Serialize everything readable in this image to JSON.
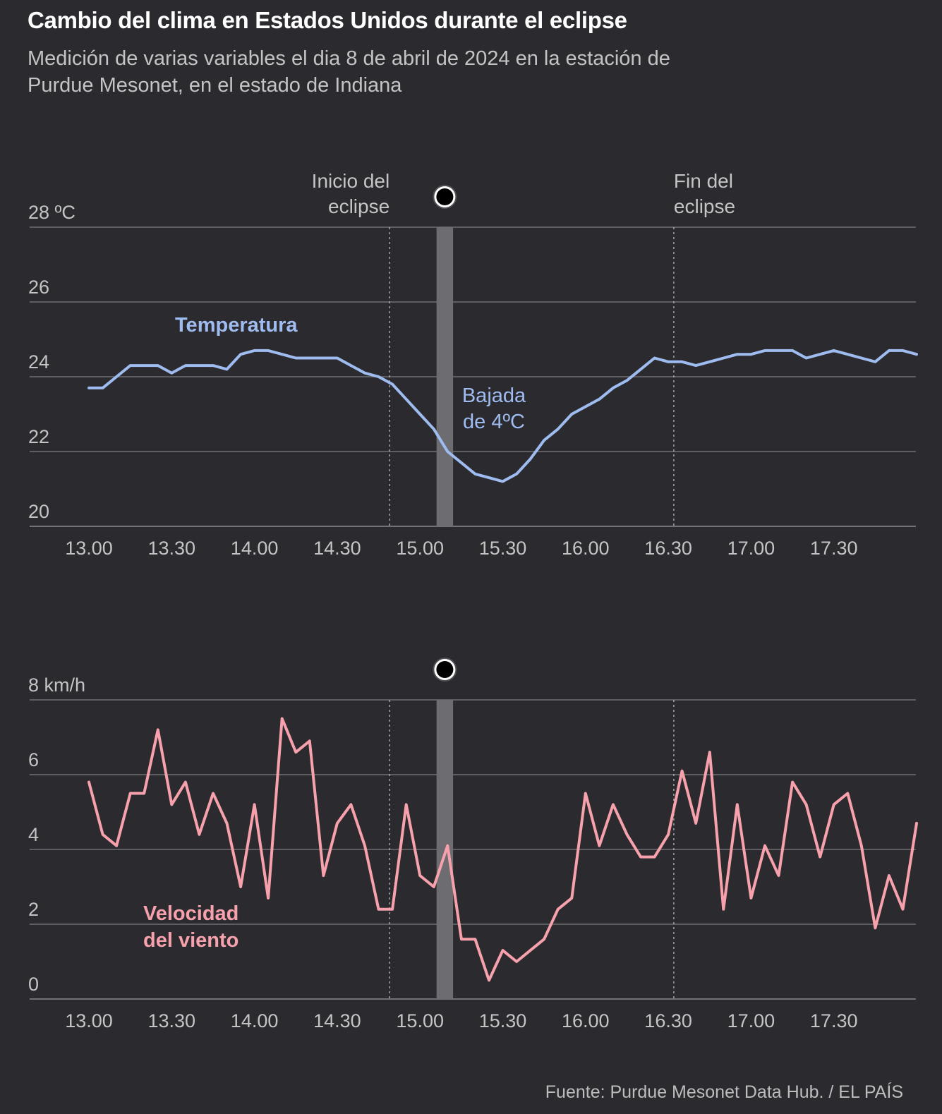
{
  "header": {
    "title": "Cambio del clima en Estados Unidos durante el eclipse",
    "subtitle": "Medición de varias variables el dia 8 de abril de 2024 en la estación de Purdue Mesonet, en el estado de Indiana"
  },
  "footer": {
    "source": "Fuente: Purdue Mesonet Data Hub. / EL PAÍS"
  },
  "colors": {
    "background": "#2b2a2f",
    "temperature": "#9fbcf0",
    "wind": "#f7a1ad",
    "grid": "#6f6e73",
    "totality_band": "#6d6c70",
    "axis_text": "#c4c4c4"
  },
  "chart_data": [
    {
      "type": "line",
      "x_tick_labels": [
        "13.00",
        "13.30",
        "14.00",
        "14.30",
        "15.00",
        "15.30",
        "16.00",
        "16.30",
        "17.00",
        "17.30"
      ],
      "y_tick_labels": [
        "28 ºC",
        "26",
        "24",
        "22",
        "20"
      ],
      "y_ticks": [
        28,
        26,
        24,
        22,
        20
      ],
      "ylim": [
        20,
        28
      ],
      "xlim_minutes_after_13h": [
        0,
        301
      ],
      "grid": true,
      "eclipse_start_label": "Inicio del eclipse",
      "eclipse_start_label_lines": [
        "Inicio del",
        "eclipse"
      ],
      "eclipse_start_minutes_after_13h": 109,
      "eclipse_end_label": "Fin del eclipse",
      "eclipse_end_label_lines": [
        "Fin del",
        "eclipse"
      ],
      "eclipse_end_minutes_after_13h": 212,
      "totality_minutes_after_13h": [
        126,
        132
      ],
      "annotation": "Bajada de 4ºC",
      "annotation_lines": [
        "Bajada",
        "de 4ºC"
      ],
      "series": [
        {
          "name": "Temperatura",
          "x_minutes_after_13h": [
            0,
            5,
            10,
            15,
            20,
            25,
            30,
            35,
            40,
            45,
            50,
            55,
            60,
            65,
            70,
            75,
            80,
            85,
            90,
            95,
            100,
            105,
            110,
            115,
            120,
            125,
            130,
            135,
            140,
            145,
            150,
            155,
            160,
            165,
            170,
            175,
            180,
            185,
            190,
            195,
            200,
            205,
            210,
            215,
            220,
            225,
            230,
            235,
            240,
            245,
            250,
            255,
            260,
            265,
            270,
            275,
            280,
            285,
            290,
            295,
            300
          ],
          "values": [
            23.7,
            23.7,
            24.0,
            24.3,
            24.3,
            24.3,
            24.1,
            24.3,
            24.3,
            24.3,
            24.2,
            24.6,
            24.7,
            24.7,
            24.6,
            24.5,
            24.5,
            24.5,
            24.5,
            24.3,
            24.1,
            24.0,
            23.8,
            23.4,
            23.0,
            22.6,
            22.0,
            21.7,
            21.4,
            21.3,
            21.2,
            21.4,
            21.8,
            22.3,
            22.6,
            23.0,
            23.2,
            23.4,
            23.7,
            23.9,
            24.2,
            24.5,
            24.4,
            24.4,
            24.3,
            24.4,
            24.5,
            24.6,
            24.6,
            24.7,
            24.7,
            24.7,
            24.5,
            24.6,
            24.7,
            24.6,
            24.5,
            24.4,
            24.7,
            24.7,
            24.6
          ]
        }
      ]
    },
    {
      "type": "line",
      "x_tick_labels": [
        "13.00",
        "13.30",
        "14.00",
        "14.30",
        "15.00",
        "15.30",
        "16.00",
        "16.30",
        "17.00",
        "17.30"
      ],
      "y_tick_labels": [
        "8 km/h",
        "6",
        "4",
        "2",
        "0"
      ],
      "y_ticks": [
        8,
        6,
        4,
        2,
        0
      ],
      "ylim": [
        0,
        8
      ],
      "xlim_minutes_after_13h": [
        0,
        301
      ],
      "grid": true,
      "eclipse_start_minutes_after_13h": 109,
      "eclipse_end_minutes_after_13h": 212,
      "totality_minutes_after_13h": [
        126,
        132
      ],
      "series": [
        {
          "name": "Velocidad del viento",
          "name_lines": [
            "Velocidad",
            "del viento"
          ],
          "x_minutes_after_13h": [
            0,
            5,
            10,
            15,
            20,
            25,
            30,
            35,
            40,
            45,
            50,
            55,
            60,
            65,
            70,
            75,
            80,
            85,
            90,
            95,
            100,
            105,
            110,
            115,
            120,
            125,
            130,
            135,
            140,
            145,
            150,
            155,
            160,
            165,
            170,
            175,
            180,
            185,
            190,
            195,
            200,
            205,
            210,
            215,
            220,
            225,
            230,
            235,
            240,
            245,
            250,
            255,
            260,
            265,
            270,
            275,
            280,
            285,
            290,
            295,
            300
          ],
          "values": [
            5.8,
            4.4,
            4.1,
            5.5,
            5.5,
            7.2,
            5.2,
            5.8,
            4.4,
            5.5,
            4.7,
            3.0,
            5.2,
            2.7,
            7.5,
            6.6,
            6.9,
            3.3,
            4.7,
            5.2,
            4.1,
            2.4,
            2.4,
            5.2,
            3.3,
            3.0,
            4.1,
            1.6,
            1.6,
            0.5,
            1.3,
            1.0,
            1.3,
            1.6,
            2.4,
            2.7,
            5.5,
            4.1,
            5.2,
            4.4,
            3.8,
            3.8,
            4.4,
            6.1,
            4.7,
            6.6,
            2.4,
            5.2,
            2.7,
            4.1,
            3.3,
            5.8,
            5.2,
            3.8,
            5.2,
            5.5,
            4.1,
            1.9,
            3.3,
            2.4,
            4.7
          ]
        }
      ]
    }
  ]
}
